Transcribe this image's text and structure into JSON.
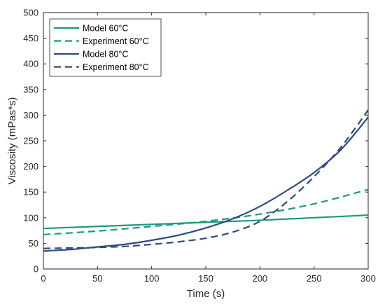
{
  "chart_data": {
    "type": "line",
    "title": "",
    "xlabel": "Time (s)",
    "ylabel": "Viscosity (mPas*s)",
    "xlim": [
      0,
      300
    ],
    "ylim": [
      0,
      500
    ],
    "xticks": [
      0,
      50,
      100,
      150,
      200,
      250,
      300
    ],
    "yticks": [
      0,
      50,
      100,
      150,
      200,
      250,
      300,
      350,
      400,
      450,
      500
    ],
    "xtick_labels": [
      "0",
      "50",
      "100",
      "150",
      "200",
      "250",
      "300"
    ],
    "ytick_labels": [
      "0",
      "50",
      "100",
      "150",
      "200",
      "250",
      "300",
      "350",
      "400",
      "450",
      "500"
    ],
    "grid": false,
    "legend_position": "top-left",
    "series": [
      {
        "name": "Model 60°C",
        "style": "solid",
        "color": "#1a9a7f",
        "x": [
          0,
          50,
          100,
          150,
          200,
          250,
          300
        ],
        "y": [
          79,
          83,
          87,
          91,
          95,
          100,
          105
        ]
      },
      {
        "name": "Experiment 60°C",
        "style": "dashed",
        "color": "#1a9a7f",
        "x": [
          0,
          50,
          100,
          150,
          200,
          250,
          300
        ],
        "y": [
          67,
          74,
          83,
          93,
          107,
          127,
          155
        ]
      },
      {
        "name": "Model 80°C",
        "style": "solid",
        "color": "#2e4a7d",
        "x": [
          0,
          25,
          50,
          75,
          100,
          125,
          150,
          175,
          200,
          225,
          250,
          275,
          300
        ],
        "y": [
          35,
          38,
          43,
          48,
          56,
          66,
          80,
          98,
          122,
          153,
          188,
          233,
          296
        ]
      },
      {
        "name": "Experiment 80°C",
        "style": "dashed",
        "color": "#2e4a7d",
        "x": [
          0,
          25,
          50,
          75,
          100,
          125,
          150,
          175,
          200,
          225,
          250,
          275,
          300
        ],
        "y": [
          40,
          41,
          42,
          44,
          48,
          53,
          60,
          72,
          93,
          131,
          180,
          238,
          310
        ]
      }
    ]
  }
}
